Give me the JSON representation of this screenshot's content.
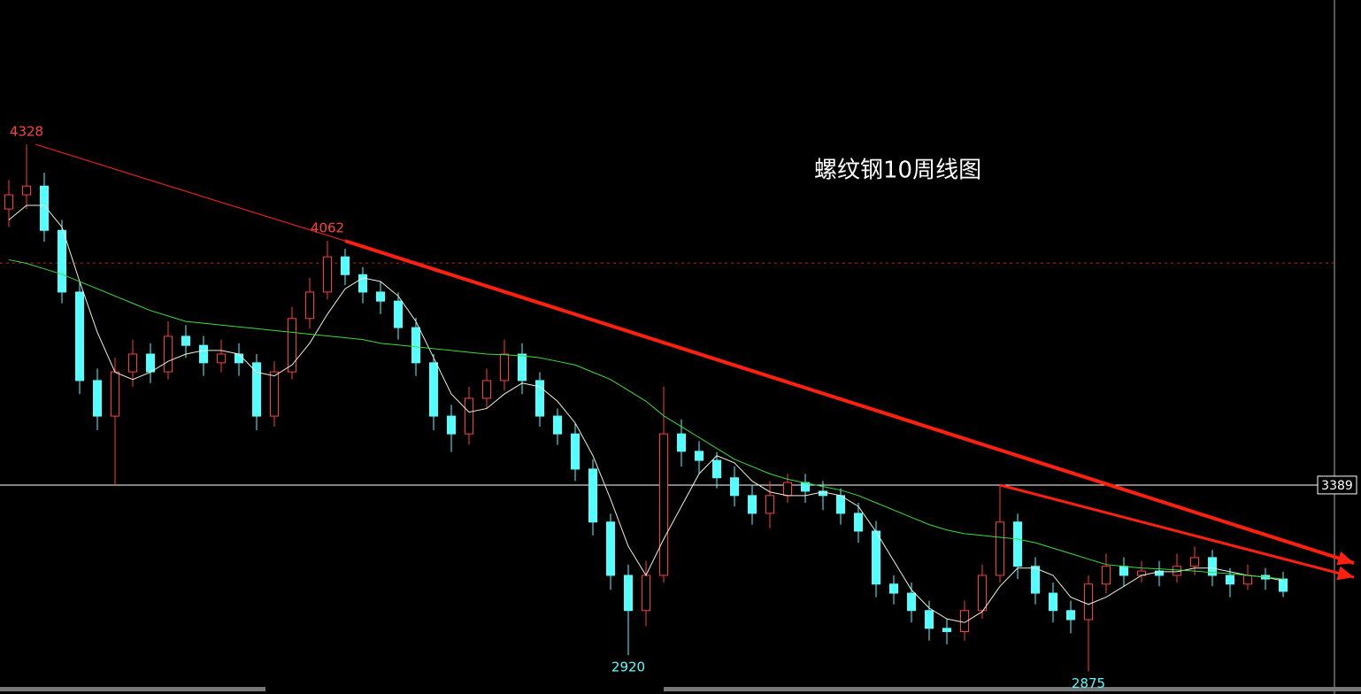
{
  "chart_data": {
    "type": "candlestick",
    "title": "螺纹钢10周线图",
    "ylim": [
      2813,
      4726
    ],
    "up_color": "#ff3c3c",
    "down_color": "#54ffff",
    "open": [
      4150,
      4189,
      4213,
      4091,
      3921,
      3677,
      3579,
      3701,
      3750,
      3701,
      3799,
      3774,
      3726,
      3750,
      3726,
      3579,
      3701,
      3848,
      3921,
      4018,
      3969,
      3921,
      3896,
      3823,
      3726,
      3579,
      3530,
      3628,
      3677,
      3750,
      3677,
      3579,
      3530,
      3433,
      3287,
      3140,
      3043,
      3140,
      3530,
      3482,
      3457,
      3409,
      3360,
      3311,
      3360,
      3396,
      3372,
      3360,
      3311,
      3262,
      3116,
      3091,
      3043,
      2994,
      2985,
      3043,
      3140,
      3287,
      3165,
      3091,
      3043,
      3018,
      3116,
      3165,
      3140,
      3152,
      3140,
      3165,
      3189,
      3140,
      3116,
      3140,
      3130
    ],
    "close": [
      4189,
      4213,
      4091,
      3921,
      3677,
      3579,
      3701,
      3750,
      3701,
      3799,
      3774,
      3726,
      3750,
      3726,
      3579,
      3701,
      3848,
      3921,
      4018,
      3969,
      3921,
      3896,
      3823,
      3726,
      3579,
      3530,
      3628,
      3677,
      3750,
      3677,
      3579,
      3530,
      3433,
      3287,
      3140,
      3043,
      3140,
      3530,
      3482,
      3457,
      3409,
      3360,
      3311,
      3360,
      3396,
      3372,
      3360,
      3311,
      3262,
      3116,
      3091,
      3043,
      2994,
      2985,
      3043,
      3140,
      3287,
      3165,
      3091,
      3043,
      3018,
      3116,
      3165,
      3140,
      3152,
      3140,
      3165,
      3189,
      3140,
      3116,
      3140,
      3130,
      3096
    ],
    "high": [
      4230,
      4328,
      4250,
      4120,
      3950,
      3710,
      3740,
      3790,
      3780,
      3840,
      3830,
      3800,
      3790,
      3780,
      3750,
      3730,
      3880,
      3960,
      4062,
      4040,
      3990,
      3950,
      3920,
      3850,
      3750,
      3610,
      3660,
      3710,
      3790,
      3780,
      3700,
      3600,
      3560,
      3460,
      3310,
      3170,
      3180,
      3660,
      3570,
      3510,
      3480,
      3440,
      3390,
      3400,
      3420,
      3420,
      3400,
      3380,
      3340,
      3290,
      3140,
      3120,
      3070,
      3020,
      3070,
      3170,
      3389,
      3310,
      3190,
      3120,
      3070,
      3140,
      3200,
      3190,
      3180,
      3180,
      3200,
      3220,
      3210,
      3160,
      3170,
      3160,
      3150
    ],
    "low": [
      4100,
      4150,
      4060,
      3890,
      3640,
      3540,
      3389,
      3660,
      3670,
      3680,
      3740,
      3690,
      3700,
      3690,
      3540,
      3550,
      3680,
      3820,
      3900,
      3940,
      3890,
      3860,
      3790,
      3690,
      3540,
      3480,
      3500,
      3600,
      3650,
      3640,
      3550,
      3500,
      3400,
      3250,
      3100,
      2920,
      3000,
      3120,
      3440,
      3420,
      3380,
      3330,
      3280,
      3270,
      3340,
      3340,
      3320,
      3280,
      3230,
      3080,
      3060,
      3010,
      2960,
      2950,
      2960,
      3020,
      3120,
      3130,
      3060,
      3010,
      2980,
      2875,
      3090,
      3110,
      3120,
      3110,
      3120,
      3140,
      3110,
      3080,
      3100,
      3100,
      3080
    ],
    "ma": [
      {
        "color": "#f0f0d8",
        "values": [
          4120,
          4160,
          4160,
          4100,
          3950,
          3810,
          3700,
          3680,
          3700,
          3730,
          3750,
          3760,
          3760,
          3750,
          3700,
          3690,
          3720,
          3780,
          3860,
          3930,
          3960,
          3950,
          3910,
          3840,
          3740,
          3640,
          3590,
          3600,
          3640,
          3670,
          3660,
          3620,
          3560,
          3470,
          3350,
          3220,
          3140,
          3240,
          3330,
          3420,
          3470,
          3450,
          3400,
          3370,
          3360,
          3360,
          3370,
          3360,
          3330,
          3260,
          3180,
          3100,
          3050,
          3020,
          3010,
          3040,
          3110,
          3160,
          3160,
          3140,
          3080,
          3060,
          3080,
          3110,
          3140,
          3150,
          3150,
          3160,
          3160,
          3150,
          3140,
          3135,
          3125
        ]
      },
      {
        "color": "#3cdc3c",
        "values": [
          4010,
          4000,
          3985,
          3970,
          3950,
          3930,
          3910,
          3890,
          3870,
          3855,
          3840,
          3835,
          3830,
          3825,
          3820,
          3815,
          3810,
          3805,
          3800,
          3795,
          3790,
          3780,
          3775,
          3770,
          3765,
          3760,
          3755,
          3750,
          3748,
          3745,
          3740,
          3730,
          3720,
          3700,
          3680,
          3650,
          3620,
          3580,
          3550,
          3520,
          3490,
          3460,
          3440,
          3420,
          3405,
          3395,
          3385,
          3375,
          3360,
          3340,
          3320,
          3300,
          3280,
          3265,
          3255,
          3250,
          3245,
          3240,
          3230,
          3215,
          3200,
          3185,
          3170,
          3165,
          3160,
          3158,
          3155,
          3152,
          3148,
          3145,
          3140,
          3135,
          3130
        ]
      }
    ],
    "annotations": [
      {
        "value": 4328,
        "color": "#ff4040"
      },
      {
        "value": 4062,
        "color": "#ff4040"
      },
      {
        "value": 2920,
        "color": "#54ffff"
      },
      {
        "value": 2875,
        "color": "#54ffff"
      }
    ],
    "reference_line": {
      "value": 3389,
      "color": "#ffffff"
    },
    "dashed_line": {
      "value": 4001,
      "color": "#c02020"
    },
    "trendlines": [
      {
        "from": [
          1.5,
          4328
        ],
        "to": [
          19,
          4062
        ],
        "width": 1.2,
        "color": "#e02020"
      },
      {
        "from": [
          19,
          4062
        ],
        "to": [
          76,
          3174
        ],
        "width": 4,
        "color": "#ff2010"
      },
      {
        "from": [
          56,
          3389
        ],
        "to": [
          76,
          3135
        ],
        "width": 3,
        "color": "#ff2010"
      }
    ]
  }
}
